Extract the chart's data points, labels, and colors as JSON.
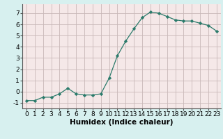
{
  "x": [
    0,
    1,
    2,
    3,
    4,
    5,
    6,
    7,
    8,
    9,
    10,
    11,
    12,
    13,
    14,
    15,
    16,
    17,
    18,
    19,
    20,
    21,
    22,
    23
  ],
  "y": [
    -0.8,
    -0.8,
    -0.5,
    -0.5,
    -0.2,
    0.3,
    -0.2,
    -0.3,
    -0.3,
    -0.2,
    1.2,
    3.2,
    4.5,
    5.6,
    6.6,
    7.1,
    7.0,
    6.7,
    6.4,
    6.3,
    6.3,
    6.1,
    5.9,
    5.4
  ],
  "xlabel": "Humidex (Indice chaleur)",
  "xlim": [
    -0.5,
    23.5
  ],
  "ylim": [
    -1.5,
    7.8
  ],
  "yticks": [
    -1,
    0,
    1,
    2,
    3,
    4,
    5,
    6,
    7
  ],
  "xticks": [
    0,
    1,
    2,
    3,
    4,
    5,
    6,
    7,
    8,
    9,
    10,
    11,
    12,
    13,
    14,
    15,
    16,
    17,
    18,
    19,
    20,
    21,
    22,
    23
  ],
  "line_color": "#2a7a6a",
  "marker_color": "#2a7a6a",
  "bg_outer": "#d7f0ef",
  "bg_inner": "#f5e8e8",
  "grid_color": "#c8b8b8",
  "tick_label_fontsize": 6.5,
  "xlabel_fontsize": 7.5
}
